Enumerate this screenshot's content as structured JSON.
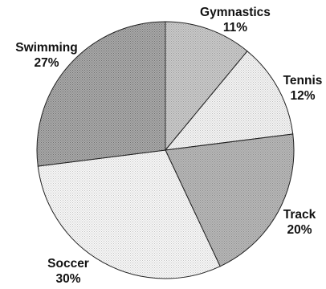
{
  "chart_data": {
    "type": "pie",
    "slices": [
      {
        "label": "Gymnastics",
        "value": 11,
        "value_label": "11%",
        "fill": "#c9c9c9",
        "texture": "#9a9a9a"
      },
      {
        "label": "Tennis",
        "value": 12,
        "value_label": "12%",
        "fill": "#f4f4f4",
        "texture": "#bdbdbd"
      },
      {
        "label": "Track",
        "value": 20,
        "value_label": "20%",
        "fill": "#b7b7b7",
        "texture": "#8c8c8c"
      },
      {
        "label": "Soccer",
        "value": 30,
        "value_label": "30%",
        "fill": "#f7f7f7",
        "texture": "#c4c4c4"
      },
      {
        "label": "Swimming",
        "value": 27,
        "value_label": "27%",
        "fill": "#a9a9a9",
        "texture": "#6f6f6f"
      }
    ],
    "start_angle": "12 o'clock",
    "direction": "clockwise",
    "legend": "none",
    "labels": "outside"
  }
}
